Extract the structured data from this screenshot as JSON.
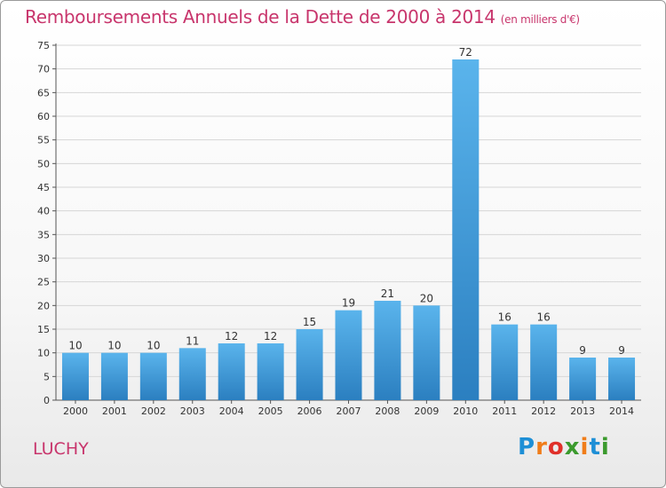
{
  "title": "Remboursements Annuels de la Dette de 2000 à 2014",
  "unit_note": "(en milliers d'€)",
  "commune": "LUCHY",
  "logo": {
    "text": "Proxiti",
    "letters": [
      "P",
      "r",
      "o",
      "x",
      "i",
      "t",
      "i"
    ],
    "colors": [
      "#1e8fd6",
      "#f07d1a",
      "#e0302a",
      "#3b9a2d",
      "#f07d1a",
      "#1e8fd6",
      "#3b9a2d"
    ]
  },
  "colors": {
    "title": "#c8356c",
    "bar_top": "#5ab4ec",
    "bar_bottom": "#2b7fc0",
    "grid": "#d6d6d6"
  },
  "chart_data": {
    "type": "bar",
    "categories": [
      "2000",
      "2001",
      "2002",
      "2003",
      "2004",
      "2005",
      "2006",
      "2007",
      "2008",
      "2009",
      "2010",
      "2011",
      "2012",
      "2013",
      "2014"
    ],
    "values": [
      10,
      10,
      10,
      11,
      12,
      12,
      15,
      19,
      21,
      20,
      72,
      16,
      16,
      9,
      9
    ],
    "ylim": [
      0,
      75
    ],
    "yticks": [
      0,
      5,
      10,
      15,
      20,
      25,
      30,
      35,
      40,
      45,
      50,
      55,
      60,
      65,
      70,
      75
    ],
    "grid": true,
    "data_labels": true
  }
}
